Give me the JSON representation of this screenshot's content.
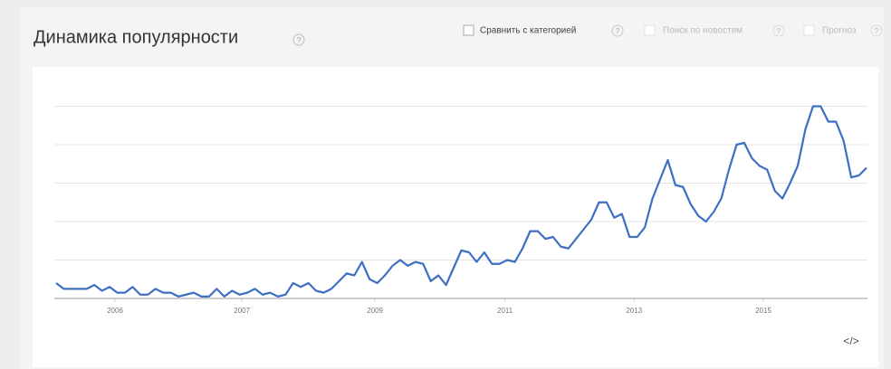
{
  "chart_data": {
    "type": "line",
    "title": "Динамика популярности",
    "values": [
      8,
      5,
      5,
      5,
      5,
      7,
      4,
      6,
      3,
      3,
      6,
      2,
      2,
      5,
      3,
      3,
      1,
      2,
      3,
      1,
      1,
      5,
      1,
      4,
      2,
      3,
      5,
      2,
      3,
      1,
      2,
      8,
      6,
      8,
      4,
      3,
      5,
      9,
      13,
      12,
      19,
      10,
      8,
      12,
      17,
      20,
      17,
      19,
      18,
      9,
      12,
      7,
      16,
      25,
      24,
      19,
      24,
      18,
      18,
      20,
      19,
      26,
      35,
      35,
      31,
      32,
      27,
      26,
      31,
      36,
      41,
      50,
      50,
      42,
      44,
      32,
      32,
      37,
      52,
      62,
      72,
      59,
      58,
      49,
      43,
      40,
      45,
      52,
      67,
      80,
      81,
      73,
      69,
      67,
      56,
      52,
      60,
      69,
      88,
      100,
      100,
      92,
      92,
      82,
      63,
      64,
      68
    ],
    "color": "#3d6fc2",
    "xlim": [
      0,
      106
    ],
    "xticks": [
      {
        "value": 7.7,
        "label": "2006"
      },
      {
        "value": 24.3,
        "label": "2007"
      },
      {
        "value": 41.7,
        "label": "2009"
      },
      {
        "value": 58.7,
        "label": "2011"
      },
      {
        "value": 75.6,
        "label": "2013"
      },
      {
        "value": 92.5,
        "label": "2015"
      }
    ],
    "ylim": [
      0,
      100
    ],
    "yticks": [
      0,
      20,
      40,
      60,
      80,
      100
    ],
    "grid": true
  },
  "controls": {
    "compare": "Сравнить с категорией",
    "news": "Поиск по новостям",
    "forecast": "Прогноз",
    "help": "?",
    "embed": "</>"
  }
}
